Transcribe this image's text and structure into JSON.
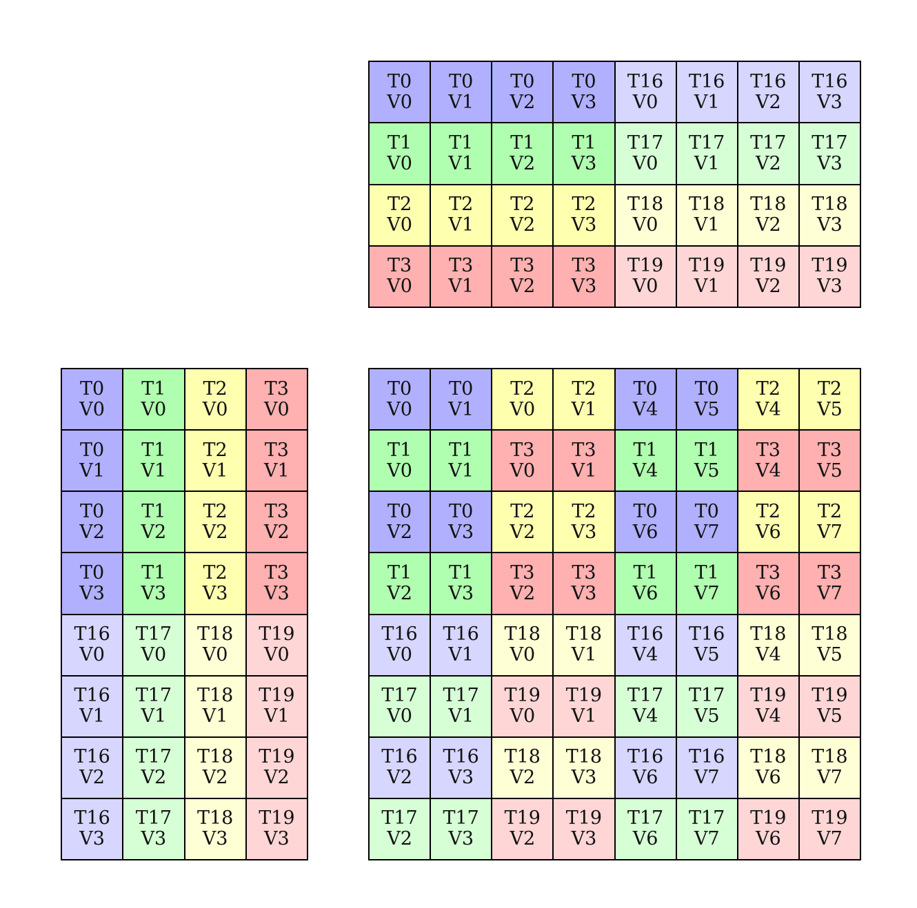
{
  "colors": {
    "T0": "#b0b0ff",
    "T1": "#b0ffb0",
    "T2": "#ffffb0",
    "T3": "#ffb0b0",
    "T16": "#d6d6ff",
    "T17": "#d6ffd6",
    "T18": "#ffffd6",
    "T19": "#ffd6d6"
  },
  "grids": {
    "top": [
      [
        "T0 V0",
        "T0 V1",
        "T0 V2",
        "T0 V3",
        "T16 V0",
        "T16 V1",
        "T16 V2",
        "T16 V3"
      ],
      [
        "T1 V0",
        "T1 V1",
        "T1 V2",
        "T1 V3",
        "T17 V0",
        "T17 V1",
        "T17 V2",
        "T17 V3"
      ],
      [
        "T2 V0",
        "T2 V1",
        "T2 V2",
        "T2 V3",
        "T18 V0",
        "T18 V1",
        "T18 V2",
        "T18 V3"
      ],
      [
        "T3 V0",
        "T3 V1",
        "T3 V2",
        "T3 V3",
        "T19 V0",
        "T19 V1",
        "T19 V2",
        "T19 V3"
      ]
    ],
    "left": [
      [
        "T0 V0",
        "T1 V0",
        "T2 V0",
        "T3 V0"
      ],
      [
        "T0 V1",
        "T1 V1",
        "T2 V1",
        "T3 V1"
      ],
      [
        "T0 V2",
        "T1 V2",
        "T2 V2",
        "T3 V2"
      ],
      [
        "T0 V3",
        "T1 V3",
        "T2 V3",
        "T3 V3"
      ],
      [
        "T16 V0",
        "T17 V0",
        "T18 V0",
        "T19 V0"
      ],
      [
        "T16 V1",
        "T17 V1",
        "T18 V1",
        "T19 V1"
      ],
      [
        "T16 V2",
        "T17 V2",
        "T18 V2",
        "T19 V2"
      ],
      [
        "T16 V3",
        "T17 V3",
        "T18 V3",
        "T19 V3"
      ]
    ],
    "main": [
      [
        "T0 V0",
        "T0 V1",
        "T2 V0",
        "T2 V1",
        "T0 V4",
        "T0 V5",
        "T2 V4",
        "T2 V5"
      ],
      [
        "T1 V0",
        "T1 V1",
        "T3 V0",
        "T3 V1",
        "T1 V4",
        "T1 V5",
        "T3 V4",
        "T3 V5"
      ],
      [
        "T0 V2",
        "T0 V3",
        "T2 V2",
        "T2 V3",
        "T0 V6",
        "T0 V7",
        "T2 V6",
        "T2 V7"
      ],
      [
        "T1 V2",
        "T1 V3",
        "T3 V2",
        "T3 V3",
        "T1 V6",
        "T1 V7",
        "T3 V6",
        "T3 V7"
      ],
      [
        "T16 V0",
        "T16 V1",
        "T18 V0",
        "T18 V1",
        "T16 V4",
        "T16 V5",
        "T18 V4",
        "T18 V5"
      ],
      [
        "T17 V0",
        "T17 V1",
        "T19 V0",
        "T19 V1",
        "T17 V4",
        "T17 V5",
        "T19 V4",
        "T19 V5"
      ],
      [
        "T16 V2",
        "T16 V3",
        "T18 V2",
        "T18 V3",
        "T16 V6",
        "T16 V7",
        "T18 V6",
        "T18 V7"
      ],
      [
        "T17 V2",
        "T17 V3",
        "T19 V2",
        "T19 V3",
        "T17 V6",
        "T17 V7",
        "T19 V6",
        "T19 V7"
      ]
    ]
  }
}
